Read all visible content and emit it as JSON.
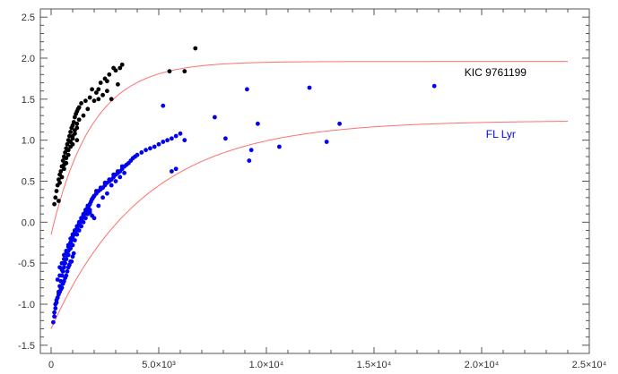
{
  "chart_data": {
    "type": "scatter",
    "title": "",
    "xlabel": "",
    "ylabel": "",
    "xlim": [
      -500,
      25000
    ],
    "ylim": [
      -1.6,
      2.6
    ],
    "xticks": [
      {
        "value": 0,
        "label": "0"
      },
      {
        "value": 5000,
        "label": "5.0×10³"
      },
      {
        "value": 10000,
        "label": "1.0×10⁴"
      },
      {
        "value": 15000,
        "label": "1.5×10⁴"
      },
      {
        "value": 20000,
        "label": "2.0×10⁴"
      },
      {
        "value": 25000,
        "label": "2.5×10⁴"
      }
    ],
    "yticks": [
      {
        "value": -1.5,
        "label": "-1.5"
      },
      {
        "value": -1.0,
        "label": "-1.0"
      },
      {
        "value": -0.5,
        "label": "-0.5"
      },
      {
        "value": 0.0,
        "label": "0.0"
      },
      {
        "value": 0.5,
        "label": "0.5"
      },
      {
        "value": 1.0,
        "label": "1.0"
      },
      {
        "value": 1.5,
        "label": "1.5"
      },
      {
        "value": 2.0,
        "label": "2.0"
      },
      {
        "value": 2.5,
        "label": "2.5"
      }
    ],
    "grid": false,
    "colors": {
      "kic": "#000000",
      "fl": "#0000ee",
      "fit": "#ff7070",
      "axis": "#555555"
    },
    "series": [
      {
        "name": "KIC 9761199",
        "color": "#000000",
        "x": [
          150,
          200,
          250,
          300,
          350,
          400,
          350,
          450,
          500,
          550,
          600,
          650,
          700,
          750,
          800,
          850,
          900,
          950,
          1000,
          1050,
          1100,
          1150,
          1200,
          1250,
          1300,
          400,
          500,
          600,
          700,
          800,
          900,
          1000,
          1100,
          1200,
          600,
          700,
          800,
          900,
          1000,
          1100,
          1200,
          1300,
          1500,
          1700,
          1400,
          1600,
          1800,
          2000,
          2200,
          2400,
          2600,
          1900,
          2100,
          2300,
          2500,
          2700,
          3000,
          3200,
          3100,
          2800,
          1000,
          1200,
          800,
          5500,
          6200,
          6700,
          2900,
          3300,
          2200,
          2600
        ],
        "y": [
          0.22,
          0.3,
          0.38,
          0.45,
          0.52,
          0.58,
          0.26,
          0.62,
          0.68,
          0.75,
          0.8,
          0.85,
          0.9,
          0.95,
          1.0,
          1.05,
          1.1,
          1.15,
          1.18,
          1.22,
          1.28,
          1.32,
          1.35,
          1.38,
          1.4,
          0.48,
          0.55,
          0.65,
          0.72,
          0.82,
          0.92,
          1.02,
          1.08,
          1.15,
          0.7,
          0.78,
          0.88,
          0.98,
          1.05,
          1.12,
          1.2,
          1.25,
          1.3,
          1.38,
          1.45,
          1.48,
          1.52,
          1.48,
          1.5,
          1.55,
          1.6,
          1.62,
          1.58,
          1.7,
          1.75,
          1.8,
          1.85,
          1.88,
          1.68,
          1.5,
          0.95,
          1.0,
          0.88,
          1.84,
          1.84,
          2.12,
          1.88,
          1.92,
          1.62,
          1.72
        ]
      },
      {
        "name": "FL Lyr",
        "color": "#0000ee",
        "x": [
          100,
          150,
          200,
          250,
          300,
          350,
          400,
          450,
          500,
          550,
          600,
          650,
          700,
          750,
          800,
          850,
          900,
          950,
          1000,
          1050,
          1100,
          1150,
          1200,
          1250,
          1300,
          1350,
          1400,
          1450,
          1500,
          1550,
          1600,
          1650,
          1700,
          1750,
          1800,
          1850,
          1900,
          1950,
          2000,
          2100,
          2200,
          2300,
          2400,
          2500,
          2600,
          2700,
          2800,
          2900,
          3000,
          3100,
          3200,
          3300,
          3400,
          3500,
          3600,
          3700,
          3800,
          3900,
          4000,
          4200,
          4400,
          4600,
          4800,
          5000,
          5200,
          5400,
          5600,
          5800,
          6000,
          600,
          700,
          800,
          900,
          1000,
          1100,
          1200,
          1300,
          1400,
          1500,
          1600,
          1700,
          1800,
          1900,
          2000,
          2200,
          2400,
          2600,
          2800,
          3000,
          3200,
          3400,
          400,
          500,
          600,
          700,
          800,
          900,
          1000,
          1100,
          1200,
          1300,
          1400,
          1500,
          1600,
          1700,
          1800,
          1900,
          2000,
          2100,
          2300,
          2500,
          2700,
          2900,
          3100,
          3300,
          300,
          400,
          500,
          600,
          700,
          800,
          900,
          1000,
          1100,
          1200,
          1300,
          1400,
          1500,
          1600,
          1700,
          1800,
          200,
          300,
          400,
          500,
          600,
          700,
          800,
          900,
          1000,
          150,
          250,
          350,
          450,
          550,
          650,
          750,
          850,
          950,
          1050,
          5200,
          5600,
          5800,
          6200,
          7600,
          8100,
          9100,
          9300,
          9200,
          9600,
          10600,
          12000,
          12800,
          13400,
          17800
        ],
        "y": [
          -1.22,
          -1.15,
          -1.05,
          -0.98,
          -0.92,
          -0.85,
          -0.78,
          -0.72,
          -0.65,
          -0.6,
          -0.55,
          -0.5,
          -0.45,
          -0.4,
          -0.35,
          -0.3,
          -0.25,
          -0.22,
          -0.18,
          -0.15,
          -0.12,
          -0.1,
          -0.08,
          -0.05,
          -0.02,
          0.0,
          0.02,
          0.05,
          0.08,
          0.1,
          0.12,
          0.15,
          0.18,
          0.2,
          0.22,
          0.25,
          0.28,
          0.3,
          0.32,
          0.35,
          0.38,
          0.4,
          0.42,
          0.45,
          0.48,
          0.5,
          0.52,
          0.55,
          0.58,
          0.6,
          0.62,
          0.65,
          0.68,
          0.7,
          0.72,
          0.75,
          0.78,
          0.8,
          0.82,
          0.85,
          0.88,
          0.9,
          0.92,
          0.95,
          0.98,
          1.0,
          1.02,
          1.05,
          1.08,
          -0.4,
          -0.35,
          -0.28,
          -0.2,
          -0.15,
          -0.1,
          -0.05,
          0.0,
          0.05,
          0.1,
          0.15,
          0.2,
          0.12,
          0.08,
          0.05,
          0.2,
          0.3,
          0.35,
          0.45,
          0.5,
          0.55,
          0.6,
          -0.55,
          -0.5,
          -0.45,
          -0.38,
          -0.3,
          -0.25,
          -0.18,
          -0.12,
          -0.08,
          -0.02,
          0.02,
          0.08,
          0.12,
          0.18,
          0.22,
          0.28,
          0.32,
          0.38,
          0.42,
          0.48,
          0.52,
          0.58,
          0.62,
          0.68,
          -0.7,
          -0.65,
          -0.58,
          -0.5,
          -0.45,
          -0.4,
          -0.32,
          -0.28,
          -0.22,
          -0.15,
          -0.1,
          -0.05,
          0.0,
          0.05,
          0.1,
          0.15,
          -1.0,
          -0.92,
          -0.85,
          -0.8,
          -0.72,
          -0.65,
          -0.55,
          -0.48,
          -0.42,
          -1.1,
          -0.95,
          -0.88,
          -0.82,
          -0.75,
          -0.68,
          -0.6,
          -0.52,
          -0.48,
          -0.38,
          1.42,
          0.62,
          0.65,
          1.0,
          1.28,
          1.02,
          1.62,
          0.88,
          0.75,
          1.2,
          0.92,
          1.64,
          0.98,
          1.2,
          1.66
        ]
      }
    ],
    "fits": [
      {
        "series": "KIC 9761199",
        "asymptote": 1.96,
        "offset": -0.15,
        "scale": 1900
      },
      {
        "series": "FL Lyr",
        "asymptote": 1.24,
        "offset": -1.3,
        "scale": 4300
      }
    ],
    "annotations": [
      {
        "text": "KIC 9761199",
        "x": 19200,
        "y": 1.78,
        "color": "#000000"
      },
      {
        "text": "FL Lyr",
        "x": 20200,
        "y": 1.03,
        "color": "#0000ee"
      }
    ]
  }
}
